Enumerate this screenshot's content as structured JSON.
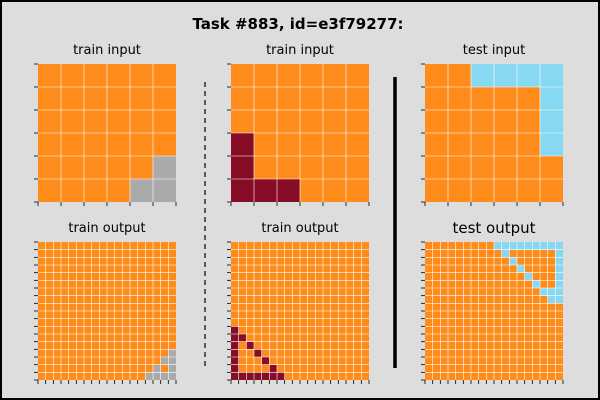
{
  "title": "Task #883, id=e3f79277:",
  "colors": {
    "orange": "#ff8c1a",
    "gray": "#aaaaaa",
    "maroon": "#870c25",
    "cyan": "#87d8f1",
    "gridline": "#ffffff",
    "background": "#dddddd"
  },
  "panels": [
    {
      "id": "train-input-1",
      "title": "train input",
      "rows": 6,
      "cols": 6,
      "base": "orange",
      "cells": [
        {
          "r": 4,
          "c": 5,
          "color": "gray"
        },
        {
          "r": 5,
          "c": 4,
          "color": "gray"
        },
        {
          "r": 5,
          "c": 5,
          "color": "gray"
        }
      ]
    },
    {
      "id": "train-output-1",
      "title": "train output",
      "rows": 18,
      "cols": 18,
      "base": "orange",
      "cells": [
        {
          "r": 14,
          "c": 17,
          "color": "gray"
        },
        {
          "r": 15,
          "c": 16,
          "color": "gray"
        },
        {
          "r": 15,
          "c": 17,
          "color": "gray"
        },
        {
          "r": 16,
          "c": 15,
          "color": "gray"
        },
        {
          "r": 16,
          "c": 17,
          "color": "gray"
        },
        {
          "r": 17,
          "c": 14,
          "color": "gray"
        },
        {
          "r": 17,
          "c": 15,
          "color": "gray"
        },
        {
          "r": 17,
          "c": 16,
          "color": "gray"
        },
        {
          "r": 17,
          "c": 17,
          "color": "gray"
        }
      ]
    },
    {
      "id": "train-input-2",
      "title": "train input",
      "rows": 6,
      "cols": 6,
      "base": "orange",
      "cells": [
        {
          "r": 3,
          "c": 0,
          "color": "maroon"
        },
        {
          "r": 4,
          "c": 0,
          "color": "maroon"
        },
        {
          "r": 5,
          "c": 0,
          "color": "maroon"
        },
        {
          "r": 5,
          "c": 1,
          "color": "maroon"
        },
        {
          "r": 5,
          "c": 2,
          "color": "maroon"
        }
      ]
    },
    {
      "id": "train-output-2",
      "title": "train output",
      "rows": 18,
      "cols": 18,
      "base": "orange",
      "cells": [
        {
          "r": 11,
          "c": 0,
          "color": "maroon"
        },
        {
          "r": 12,
          "c": 0,
          "color": "maroon"
        },
        {
          "r": 12,
          "c": 1,
          "color": "maroon"
        },
        {
          "r": 13,
          "c": 0,
          "color": "maroon"
        },
        {
          "r": 13,
          "c": 2,
          "color": "maroon"
        },
        {
          "r": 14,
          "c": 0,
          "color": "maroon"
        },
        {
          "r": 14,
          "c": 3,
          "color": "maroon"
        },
        {
          "r": 15,
          "c": 0,
          "color": "maroon"
        },
        {
          "r": 15,
          "c": 4,
          "color": "maroon"
        },
        {
          "r": 16,
          "c": 0,
          "color": "maroon"
        },
        {
          "r": 16,
          "c": 5,
          "color": "maroon"
        },
        {
          "r": 17,
          "c": 0,
          "color": "maroon"
        },
        {
          "r": 17,
          "c": 1,
          "color": "maroon"
        },
        {
          "r": 17,
          "c": 2,
          "color": "maroon"
        },
        {
          "r": 17,
          "c": 3,
          "color": "maroon"
        },
        {
          "r": 17,
          "c": 4,
          "color": "maroon"
        },
        {
          "r": 17,
          "c": 5,
          "color": "maroon"
        },
        {
          "r": 17,
          "c": 6,
          "color": "maroon"
        }
      ]
    },
    {
      "id": "test-input",
      "title": "test input",
      "rows": 6,
      "cols": 6,
      "base": "orange",
      "cells": [
        {
          "r": 0,
          "c": 2,
          "color": "cyan"
        },
        {
          "r": 0,
          "c": 3,
          "color": "cyan"
        },
        {
          "r": 0,
          "c": 4,
          "color": "cyan"
        },
        {
          "r": 0,
          "c": 5,
          "color": "cyan"
        },
        {
          "r": 1,
          "c": 5,
          "color": "cyan"
        },
        {
          "r": 2,
          "c": 5,
          "color": "cyan"
        },
        {
          "r": 3,
          "c": 5,
          "color": "cyan"
        }
      ]
    },
    {
      "id": "test-output",
      "title": "test output",
      "rows": 18,
      "cols": 18,
      "base": "orange",
      "cells": [
        {
          "r": 0,
          "c": 9,
          "color": "cyan"
        },
        {
          "r": 0,
          "c": 10,
          "color": "cyan"
        },
        {
          "r": 0,
          "c": 11,
          "color": "cyan"
        },
        {
          "r": 0,
          "c": 12,
          "color": "cyan"
        },
        {
          "r": 0,
          "c": 13,
          "color": "cyan"
        },
        {
          "r": 0,
          "c": 14,
          "color": "cyan"
        },
        {
          "r": 0,
          "c": 15,
          "color": "cyan"
        },
        {
          "r": 0,
          "c": 16,
          "color": "cyan"
        },
        {
          "r": 0,
          "c": 17,
          "color": "cyan"
        },
        {
          "r": 1,
          "c": 10,
          "color": "cyan"
        },
        {
          "r": 1,
          "c": 17,
          "color": "cyan"
        },
        {
          "r": 2,
          "c": 11,
          "color": "cyan"
        },
        {
          "r": 2,
          "c": 17,
          "color": "cyan"
        },
        {
          "r": 3,
          "c": 12,
          "color": "cyan"
        },
        {
          "r": 3,
          "c": 17,
          "color": "cyan"
        },
        {
          "r": 4,
          "c": 13,
          "color": "cyan"
        },
        {
          "r": 4,
          "c": 17,
          "color": "cyan"
        },
        {
          "r": 5,
          "c": 14,
          "color": "cyan"
        },
        {
          "r": 5,
          "c": 17,
          "color": "cyan"
        },
        {
          "r": 6,
          "c": 15,
          "color": "cyan"
        },
        {
          "r": 6,
          "c": 16,
          "color": "cyan"
        },
        {
          "r": 6,
          "c": 17,
          "color": "cyan"
        },
        {
          "r": 7,
          "c": 16,
          "color": "cyan"
        },
        {
          "r": 7,
          "c": 17,
          "color": "cyan"
        }
      ]
    }
  ]
}
